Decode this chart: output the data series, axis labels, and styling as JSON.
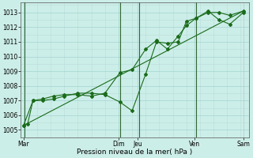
{
  "xlabel": "Pression niveau de la mer( hPa )",
  "bg_color": "#cceee8",
  "grid_minor_color": "#bbddda",
  "grid_major_color": "#99cccc",
  "line_color": "#1a6b1a",
  "vline_color": "#336633",
  "ylim": [
    1004.5,
    1013.7
  ],
  "xlim": [
    -0.1,
    8.3
  ],
  "yticks": [
    1005,
    1006,
    1007,
    1008,
    1009,
    1010,
    1011,
    1012,
    1013
  ],
  "day_labels": [
    "Mar",
    "Dim",
    "Jeu",
    "Ven",
    "Sam"
  ],
  "day_positions": [
    0,
    3.5,
    4.2,
    6.3,
    8.1
  ],
  "vline_positions": [
    0.05,
    3.55,
    4.25,
    6.35
  ],
  "series1_x": [
    0,
    0.15,
    0.35,
    0.7,
    1.1,
    1.5,
    2.0,
    2.5,
    3.0,
    3.55,
    4.0,
    4.5,
    4.9,
    5.3,
    5.7,
    6.0,
    6.35,
    6.8,
    7.2,
    7.6,
    8.1
  ],
  "series1_y": [
    1005.3,
    1005.4,
    1007.0,
    1007.0,
    1007.1,
    1007.3,
    1007.5,
    1007.5,
    1007.4,
    1006.9,
    1006.3,
    1008.8,
    1011.0,
    1010.9,
    1011.0,
    1012.4,
    1012.6,
    1013.0,
    1013.0,
    1012.8,
    1013.1
  ],
  "series2_x": [
    0,
    0.35,
    0.7,
    1.1,
    1.5,
    2.0,
    2.5,
    3.0,
    3.55,
    4.0,
    4.5,
    4.9,
    5.3,
    5.7,
    6.0,
    6.35,
    6.8,
    7.2,
    7.6,
    8.1
  ],
  "series2_y": [
    1005.3,
    1007.0,
    1007.1,
    1007.3,
    1007.4,
    1007.4,
    1007.3,
    1007.5,
    1008.9,
    1009.1,
    1010.5,
    1011.1,
    1010.5,
    1011.4,
    1012.1,
    1012.6,
    1013.1,
    1012.5,
    1012.2,
    1013.0
  ],
  "trend_x": [
    0,
    8.1
  ],
  "trend_y": [
    1005.3,
    1013.1
  ],
  "marker": "D",
  "marker_size": 2.0,
  "linewidth": 0.8,
  "tick_fontsize": 5.5,
  "xlabel_fontsize": 6.5
}
